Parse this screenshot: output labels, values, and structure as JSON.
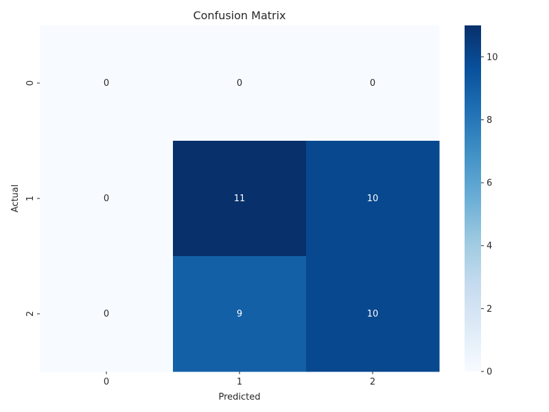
{
  "chart_data": {
    "type": "heatmap",
    "title": "Confusion Matrix",
    "xlabel": "Predicted",
    "ylabel": "Actual",
    "x_categories": [
      "0",
      "1",
      "2"
    ],
    "y_categories": [
      "0",
      "1",
      "2"
    ],
    "values": [
      [
        0,
        0,
        0
      ],
      [
        0,
        11,
        10
      ],
      [
        0,
        9,
        10
      ]
    ],
    "colormap": "Blues",
    "color_range": [
      0,
      11
    ],
    "colorbar_ticks": [
      0,
      2,
      4,
      6,
      8,
      10
    ],
    "annotations": true,
    "legend": "colorbar-right"
  }
}
